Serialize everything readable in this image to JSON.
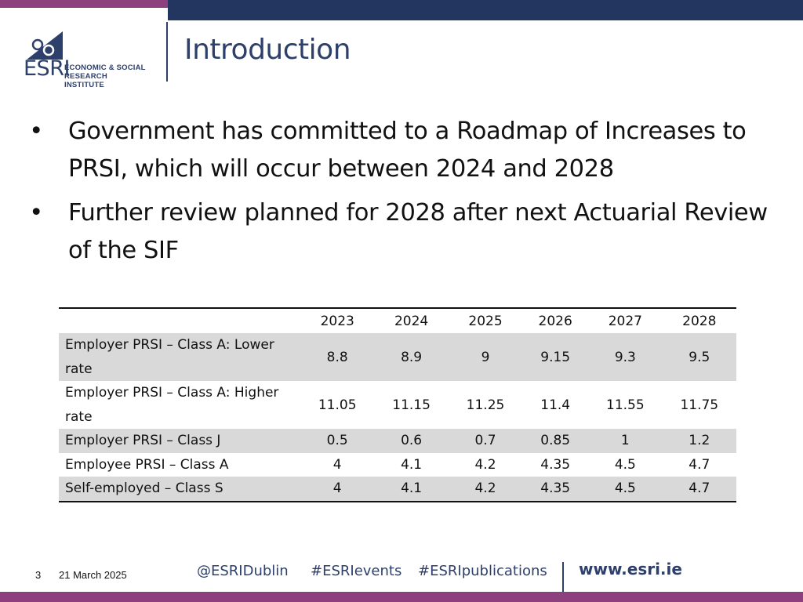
{
  "logo": {
    "wordmark": "ESRI",
    "subtitle_line1": "ECONOMIC & SOCIAL",
    "subtitle_line2": "RESEARCH INSTITUTE"
  },
  "title": "Introduction",
  "bullets": [
    "Government has committed to a Roadmap of Increases to PRSI, which will occur between 2024 and 2028",
    "Further review planned for 2028 after next Actuarial Review of the SIF"
  ],
  "bullet_glyph": "•",
  "table": {
    "columns": [
      "",
      "2023",
      "2024",
      "2025",
      "2026",
      "2027",
      "2028"
    ],
    "rows": [
      {
        "label": "Employer PRSI – Class A: Lower rate",
        "values": [
          "8.8",
          "8.9",
          "9",
          "9.15",
          "9.3",
          "9.5"
        ]
      },
      {
        "label": "Employer PRSI – Class A: Higher rate",
        "values": [
          "11.05",
          "11.15",
          "11.25",
          "11.4",
          "11.55",
          "11.75"
        ]
      },
      {
        "label": "Employer PRSI – Class J",
        "values": [
          "0.5",
          "0.6",
          "0.7",
          "0.85",
          "1",
          "1.2"
        ]
      },
      {
        "label": "Employee PRSI – Class A",
        "values": [
          "4",
          "4.1",
          "4.2",
          "4.35",
          "4.5",
          "4.7"
        ]
      },
      {
        "label": "Self-employed – Class S",
        "values": [
          "4",
          "4.1",
          "4.2",
          "4.35",
          "4.5",
          "4.7"
        ]
      }
    ]
  },
  "footer": {
    "page_number": "3",
    "date": "21 March 2025",
    "social": [
      "@ESRIDublin",
      "#ESRIevents",
      "#ESRIpublications"
    ],
    "url": "www.esri.ie"
  },
  "colors": {
    "navy": "#23365f",
    "purple": "#8e3f7e",
    "row_shade": "#d9d9d9"
  }
}
